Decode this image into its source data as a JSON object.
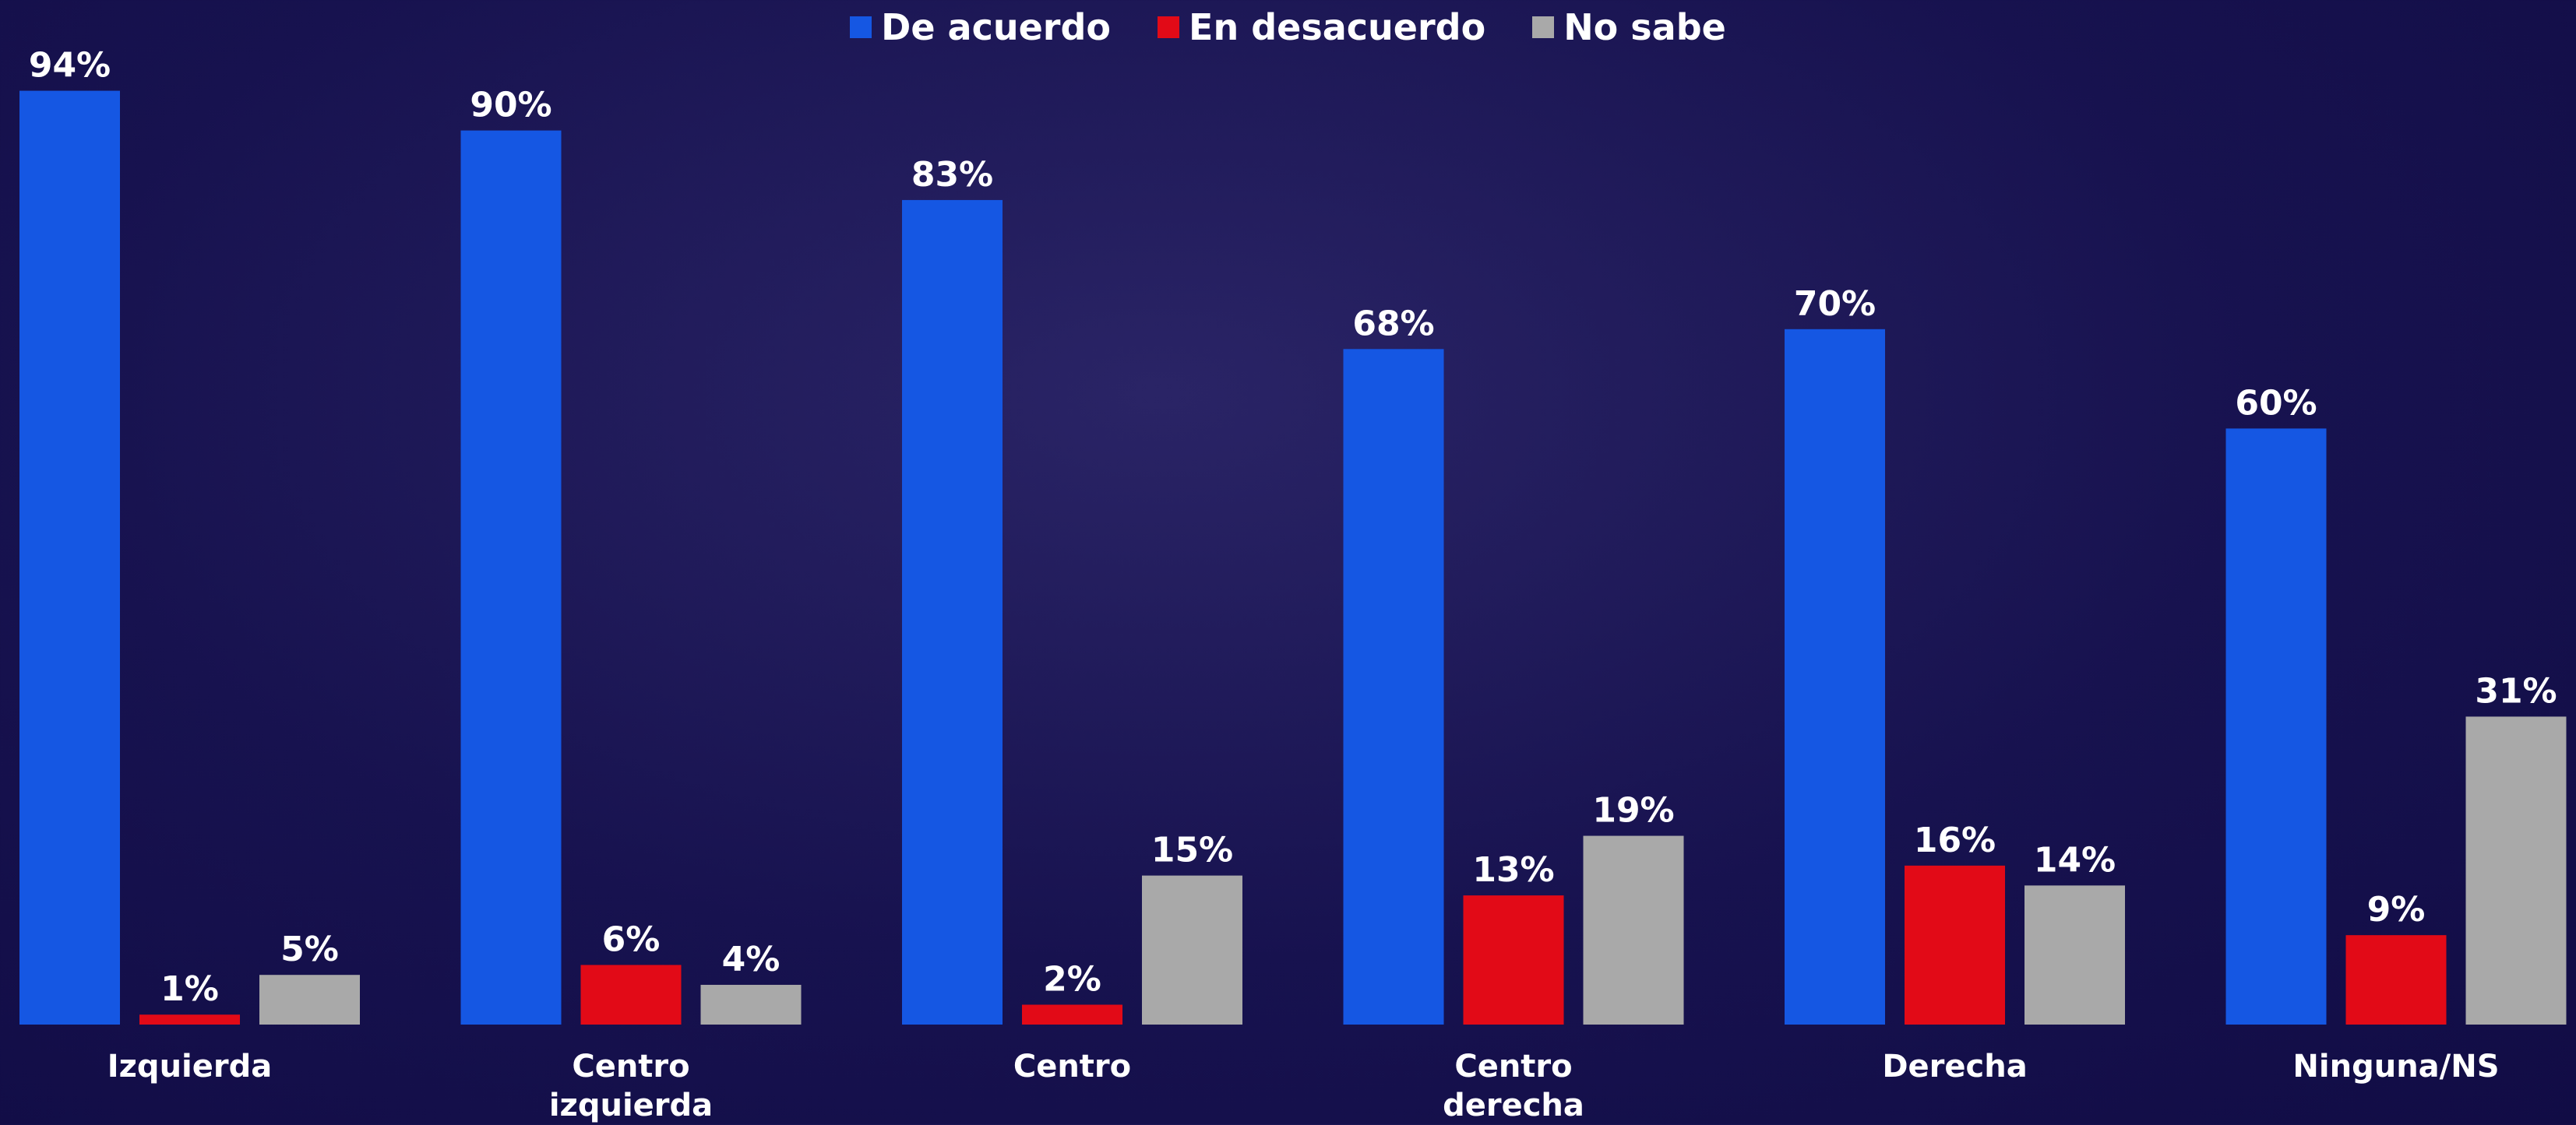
{
  "chart_data": {
    "type": "bar",
    "categories": [
      "Izquierda",
      "Centro izquierda",
      "Centro",
      "Centro derecha",
      "Derecha",
      "Ninguna/NS"
    ],
    "series": [
      {
        "name": "De acuerdo",
        "color": "#1557e3",
        "values": [
          94,
          90,
          83,
          68,
          70,
          60
        ],
        "value_labels": [
          "94%",
          "90%",
          "83%",
          "68%",
          "70%",
          "60%"
        ]
      },
      {
        "name": "En desacuerdo",
        "color": "#e20a17",
        "values": [
          1,
          6,
          2,
          13,
          16,
          9
        ],
        "value_labels": [
          "1%",
          "6%",
          "2%",
          "13%",
          "16%",
          "9%"
        ]
      },
      {
        "name": "No sabe",
        "color": "#a9a9a9",
        "values": [
          5,
          4,
          15,
          19,
          14,
          31
        ],
        "value_labels": [
          "5%",
          "4%",
          "15%",
          "19%",
          "14%",
          "31%"
        ]
      }
    ],
    "ylim": [
      0,
      100
    ],
    "legend": "top"
  }
}
